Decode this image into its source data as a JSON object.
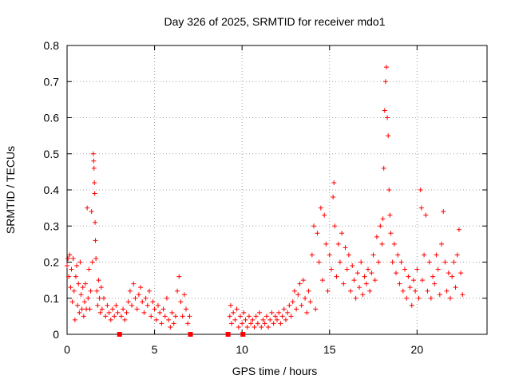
{
  "chart_data": {
    "type": "scatter",
    "title": "Day 326 of 2025, SRMTID for receiver mdo1",
    "xlabel": "GPS time / hours",
    "ylabel": "SRMTID / TECUs",
    "xlim": [
      0,
      24
    ],
    "ylim": [
      0,
      0.8
    ],
    "xticks": [
      0,
      5,
      10,
      15,
      20
    ],
    "yticks": [
      0,
      0.1,
      0.2,
      0.3,
      0.4,
      0.5,
      0.6,
      0.7,
      0.8
    ],
    "xtick_labels": [
      "0",
      "5",
      "10",
      "15",
      "20"
    ],
    "ytick_labels": [
      "0",
      "0.1",
      "0.2",
      "0.3",
      "0.4",
      "0.5",
      "0.6",
      "0.7",
      "0.8"
    ],
    "grid": true,
    "marker": "+",
    "color": "#ff0000",
    "series": [
      {
        "name": "SRMTID",
        "points": [
          [
            0.0,
            0.19
          ],
          [
            0.05,
            0.21
          ],
          [
            0.1,
            0.16
          ],
          [
            0.15,
            0.22
          ],
          [
            0.2,
            0.13
          ],
          [
            0.25,
            0.18
          ],
          [
            0.3,
            0.09
          ],
          [
            0.35,
            0.21
          ],
          [
            0.4,
            0.12
          ],
          [
            0.45,
            0.04
          ],
          [
            0.5,
            0.16
          ],
          [
            0.55,
            0.19
          ],
          [
            0.6,
            0.08
          ],
          [
            0.65,
            0.14
          ],
          [
            0.7,
            0.06
          ],
          [
            0.75,
            0.2
          ],
          [
            0.8,
            0.11
          ],
          [
            0.85,
            0.07
          ],
          [
            0.9,
            0.13
          ],
          [
            0.95,
            0.05
          ],
          [
            1.0,
            0.09
          ],
          [
            1.05,
            0.14
          ],
          [
            1.1,
            0.07
          ],
          [
            1.15,
            0.35
          ],
          [
            1.2,
            0.1
          ],
          [
            1.25,
            0.18
          ],
          [
            1.3,
            0.07
          ],
          [
            1.35,
            0.12
          ],
          [
            1.4,
            0.34
          ],
          [
            1.45,
            0.2
          ],
          [
            1.5,
            0.5
          ],
          [
            1.52,
            0.48
          ],
          [
            1.54,
            0.46
          ],
          [
            1.56,
            0.42
          ],
          [
            1.58,
            0.39
          ],
          [
            1.6,
            0.31
          ],
          [
            1.62,
            0.26
          ],
          [
            1.65,
            0.21
          ],
          [
            1.7,
            0.12
          ],
          [
            1.75,
            0.08
          ],
          [
            1.8,
            0.15
          ],
          [
            1.85,
            0.1
          ],
          [
            1.9,
            0.06
          ],
          [
            1.95,
            0.13
          ],
          [
            2.0,
            0.07
          ],
          [
            2.1,
            0.1
          ],
          [
            2.2,
            0.05
          ],
          [
            2.3,
            0.08
          ],
          [
            2.4,
            0.06
          ],
          [
            2.5,
            0.04
          ],
          [
            2.6,
            0.07
          ],
          [
            2.7,
            0.05
          ],
          [
            2.8,
            0.08
          ],
          [
            2.9,
            0.06
          ],
          [
            3.0,
            0.0
          ],
          [
            3.1,
            0.05
          ],
          [
            3.2,
            0.07
          ],
          [
            3.3,
            0.04
          ],
          [
            3.4,
            0.06
          ],
          [
            3.5,
            0.09
          ],
          [
            3.6,
            0.12
          ],
          [
            3.7,
            0.08
          ],
          [
            3.8,
            0.14
          ],
          [
            3.9,
            0.1
          ],
          [
            4.0,
            0.07
          ],
          [
            4.1,
            0.11
          ],
          [
            4.2,
            0.13
          ],
          [
            4.3,
            0.09
          ],
          [
            4.4,
            0.06
          ],
          [
            4.5,
            0.1
          ],
          [
            4.6,
            0.08
          ],
          [
            4.7,
            0.12
          ],
          [
            4.8,
            0.05
          ],
          [
            4.9,
            0.09
          ],
          [
            5.0,
            0.07
          ],
          [
            5.1,
            0.04
          ],
          [
            5.2,
            0.08
          ],
          [
            5.3,
            0.06
          ],
          [
            5.4,
            0.03
          ],
          [
            5.5,
            0.07
          ],
          [
            5.6,
            0.05
          ],
          [
            5.7,
            0.1
          ],
          [
            5.8,
            0.04
          ],
          [
            5.9,
            0.02
          ],
          [
            6.0,
            0.06
          ],
          [
            6.1,
            0.03
          ],
          [
            6.2,
            0.05
          ],
          [
            6.3,
            0.12
          ],
          [
            6.4,
            0.16
          ],
          [
            6.5,
            0.09
          ],
          [
            6.6,
            0.05
          ],
          [
            6.7,
            0.11
          ],
          [
            6.8,
            0.07
          ],
          [
            6.9,
            0.03
          ],
          [
            7.0,
            0.05
          ],
          [
            7.05,
            0.0
          ],
          [
            9.2,
            0.0
          ],
          [
            9.3,
            0.05
          ],
          [
            9.35,
            0.08
          ],
          [
            9.4,
            0.03
          ],
          [
            9.5,
            0.06
          ],
          [
            9.6,
            0.04
          ],
          [
            9.7,
            0.07
          ],
          [
            9.8,
            0.02
          ],
          [
            9.9,
            0.05
          ],
          [
            10.0,
            0.03
          ],
          [
            10.05,
            0.0
          ],
          [
            10.1,
            0.06
          ],
          [
            10.2,
            0.04
          ],
          [
            10.3,
            0.02
          ],
          [
            10.4,
            0.05
          ],
          [
            10.5,
            0.03
          ],
          [
            10.6,
            0.04
          ],
          [
            10.7,
            0.02
          ],
          [
            10.8,
            0.05
          ],
          [
            10.9,
            0.03
          ],
          [
            11.0,
            0.06
          ],
          [
            11.1,
            0.02
          ],
          [
            11.2,
            0.04
          ],
          [
            11.3,
            0.03
          ],
          [
            11.4,
            0.05
          ],
          [
            11.5,
            0.02
          ],
          [
            11.6,
            0.04
          ],
          [
            11.7,
            0.06
          ],
          [
            11.8,
            0.03
          ],
          [
            11.9,
            0.05
          ],
          [
            12.0,
            0.04
          ],
          [
            12.1,
            0.06
          ],
          [
            12.2,
            0.03
          ],
          [
            12.3,
            0.05
          ],
          [
            12.4,
            0.07
          ],
          [
            12.5,
            0.04
          ],
          [
            12.6,
            0.06
          ],
          [
            12.7,
            0.08
          ],
          [
            12.8,
            0.05
          ],
          [
            12.9,
            0.09
          ],
          [
            13.0,
            0.12
          ],
          [
            13.1,
            0.07
          ],
          [
            13.2,
            0.11
          ],
          [
            13.3,
            0.14
          ],
          [
            13.4,
            0.08
          ],
          [
            13.5,
            0.15
          ],
          [
            13.6,
            0.1
          ],
          [
            13.7,
            0.06
          ],
          [
            13.8,
            0.12
          ],
          [
            13.9,
            0.09
          ],
          [
            14.0,
            0.22
          ],
          [
            14.1,
            0.3
          ],
          [
            14.2,
            0.07
          ],
          [
            14.3,
            0.28
          ],
          [
            14.4,
            0.2
          ],
          [
            14.5,
            0.35
          ],
          [
            14.6,
            0.15
          ],
          [
            14.7,
            0.33
          ],
          [
            14.8,
            0.25
          ],
          [
            14.9,
            0.12
          ],
          [
            15.0,
            0.22
          ],
          [
            15.1,
            0.18
          ],
          [
            15.2,
            0.38
          ],
          [
            15.25,
            0.42
          ],
          [
            15.3,
            0.3
          ],
          [
            15.4,
            0.16
          ],
          [
            15.5,
            0.25
          ],
          [
            15.6,
            0.2
          ],
          [
            15.7,
            0.28
          ],
          [
            15.8,
            0.14
          ],
          [
            15.9,
            0.24
          ],
          [
            16.0,
            0.18
          ],
          [
            16.1,
            0.22
          ],
          [
            16.2,
            0.12
          ],
          [
            16.3,
            0.19
          ],
          [
            16.4,
            0.15
          ],
          [
            16.5,
            0.1
          ],
          [
            16.6,
            0.17
          ],
          [
            16.7,
            0.13
          ],
          [
            16.8,
            0.2
          ],
          [
            16.9,
            0.11
          ],
          [
            17.0,
            0.16
          ],
          [
            17.1,
            0.14
          ],
          [
            17.2,
            0.18
          ],
          [
            17.3,
            0.12
          ],
          [
            17.4,
            0.17
          ],
          [
            17.5,
            0.22
          ],
          [
            17.6,
            0.15
          ],
          [
            17.7,
            0.27
          ],
          [
            17.8,
            0.2
          ],
          [
            17.9,
            0.3
          ],
          [
            18.0,
            0.25
          ],
          [
            18.05,
            0.32
          ],
          [
            18.1,
            0.46
          ],
          [
            18.15,
            0.62
          ],
          [
            18.2,
            0.7
          ],
          [
            18.25,
            0.74
          ],
          [
            18.3,
            0.6
          ],
          [
            18.35,
            0.55
          ],
          [
            18.4,
            0.4
          ],
          [
            18.45,
            0.33
          ],
          [
            18.5,
            0.28
          ],
          [
            18.6,
            0.2
          ],
          [
            18.7,
            0.25
          ],
          [
            18.8,
            0.17
          ],
          [
            18.9,
            0.22
          ],
          [
            19.0,
            0.14
          ],
          [
            19.1,
            0.2
          ],
          [
            19.2,
            0.12
          ],
          [
            19.3,
            0.18
          ],
          [
            19.4,
            0.1
          ],
          [
            19.5,
            0.16
          ],
          [
            19.6,
            0.13
          ],
          [
            19.7,
            0.08
          ],
          [
            19.8,
            0.15
          ],
          [
            19.9,
            0.12
          ],
          [
            20.0,
            0.18
          ],
          [
            20.1,
            0.1
          ],
          [
            20.2,
            0.4
          ],
          [
            20.25,
            0.35
          ],
          [
            20.3,
            0.15
          ],
          [
            20.4,
            0.22
          ],
          [
            20.5,
            0.33
          ],
          [
            20.6,
            0.12
          ],
          [
            20.7,
            0.2
          ],
          [
            20.8,
            0.1
          ],
          [
            20.9,
            0.16
          ],
          [
            21.0,
            0.14
          ],
          [
            21.1,
            0.22
          ],
          [
            21.2,
            0.18
          ],
          [
            21.3,
            0.11
          ],
          [
            21.4,
            0.25
          ],
          [
            21.5,
            0.34
          ],
          [
            21.6,
            0.2
          ],
          [
            21.7,
            0.12
          ],
          [
            21.8,
            0.17
          ],
          [
            21.9,
            0.1
          ],
          [
            22.0,
            0.16
          ],
          [
            22.1,
            0.2
          ],
          [
            22.2,
            0.13
          ],
          [
            22.3,
            0.22
          ],
          [
            22.4,
            0.29
          ],
          [
            22.5,
            0.17
          ],
          [
            22.6,
            0.11
          ]
        ]
      }
    ]
  }
}
